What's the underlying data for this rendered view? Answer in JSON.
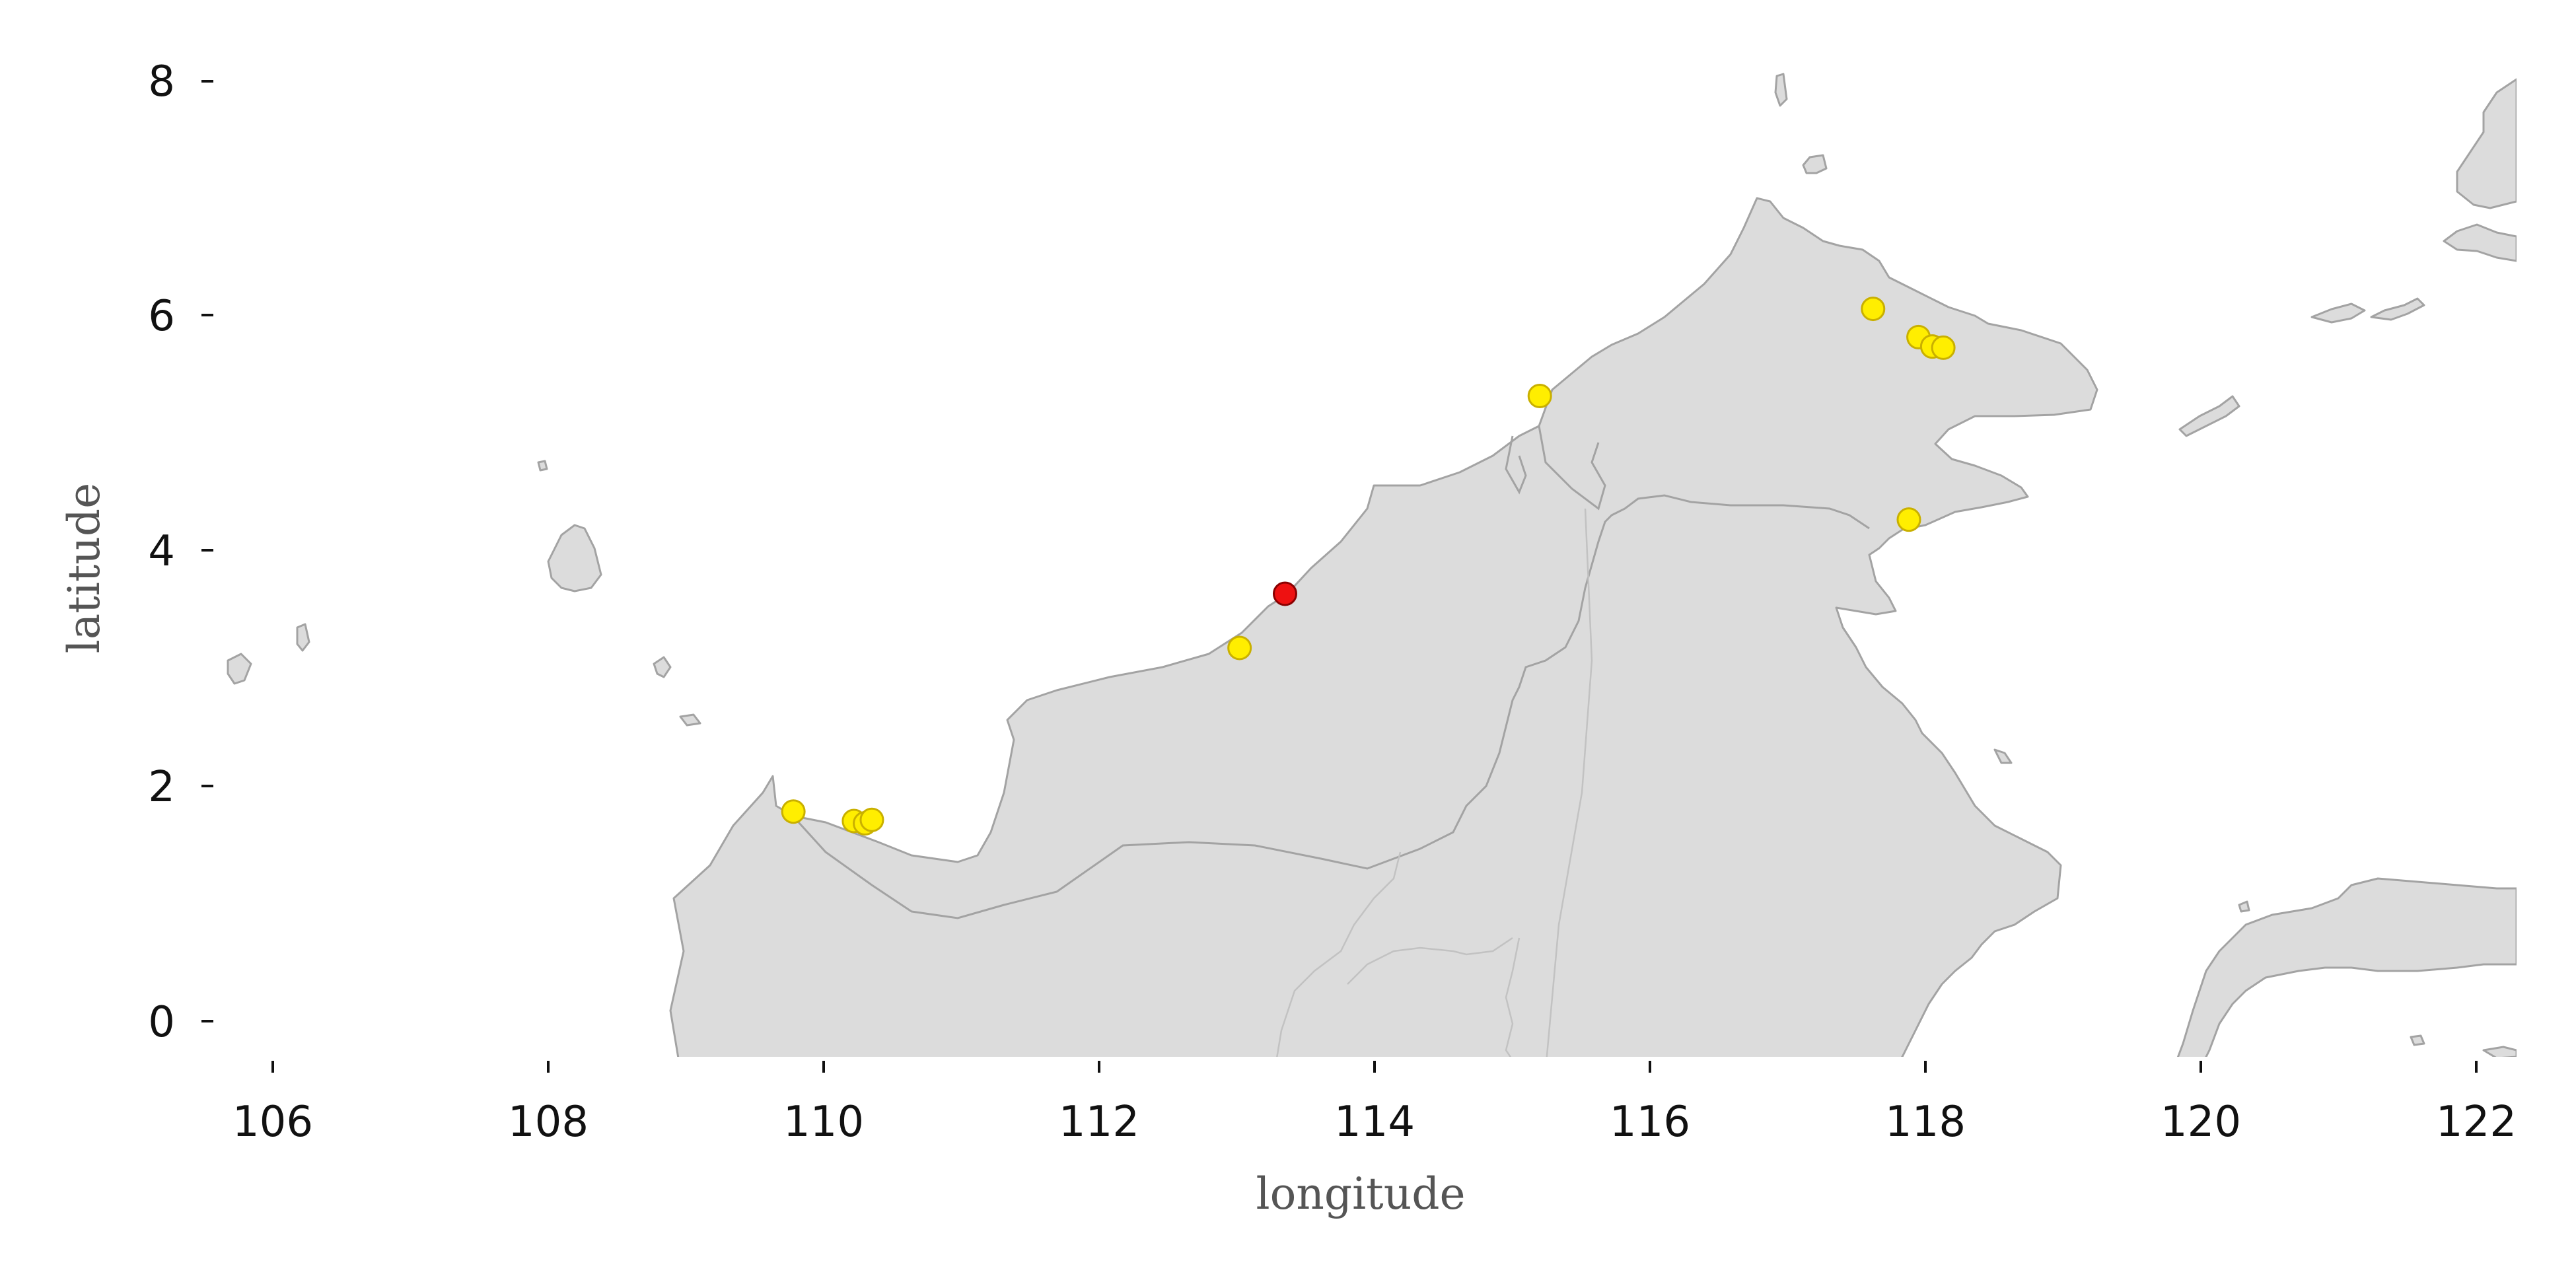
{
  "chart_data": {
    "type": "scatter",
    "title": "",
    "xlabel": "longitude",
    "ylabel": "latitude",
    "xlim": [
      105.6,
      122.3
    ],
    "ylim": [
      -0.3,
      8.2
    ],
    "xticks": [
      106,
      108,
      110,
      112,
      114,
      116,
      118,
      120,
      122
    ],
    "yticks": [
      0,
      2,
      4,
      6,
      8
    ],
    "grid": false,
    "legend": "none",
    "basemap": "Borneo region coastline and country borders, light gray land",
    "colors": {
      "land": "#dcdcdc",
      "coast": "#a3a3a3",
      "yellow_points": "#ffee00",
      "red_point": "#ee1111"
    },
    "series": [
      {
        "color": "yellow",
        "x": [
          109.78,
          110.22,
          110.3,
          110.35,
          113.02,
          115.2,
          117.62,
          117.95,
          118.05,
          118.13,
          117.88
        ],
        "y": [
          1.78,
          1.7,
          1.68,
          1.71,
          3.17,
          5.31,
          6.05,
          5.81,
          5.73,
          5.72,
          4.26
        ]
      },
      {
        "color": "red",
        "x": [
          113.35
        ],
        "y": [
          3.63
        ]
      }
    ]
  }
}
